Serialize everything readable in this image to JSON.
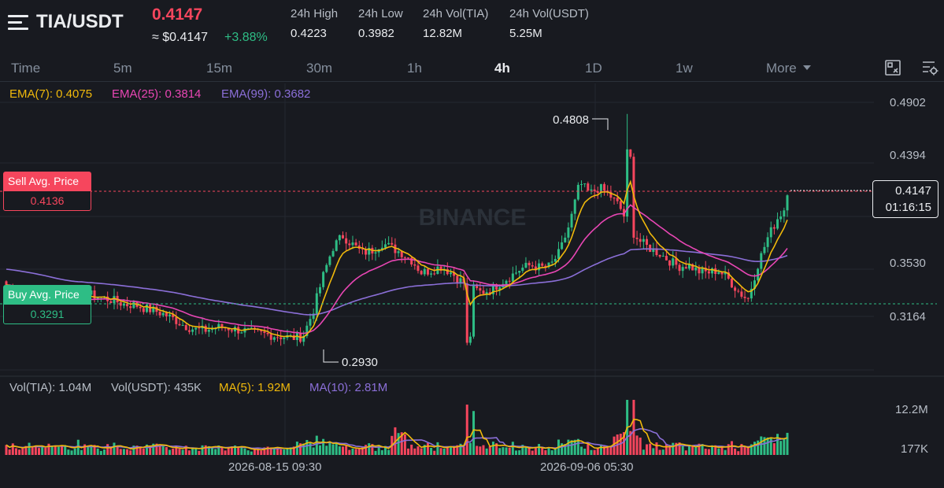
{
  "header": {
    "pair": "TIA/USDT",
    "last_price": "0.4147",
    "usd_price": "≈ $0.4147",
    "change": "+3.88%",
    "stats": [
      {
        "label": "24h High",
        "value": "0.4223"
      },
      {
        "label": "24h Low",
        "value": "0.3982"
      },
      {
        "label": "24h Vol(TIA)",
        "value": "12.82M"
      },
      {
        "label": "24h Vol(USDT)",
        "value": "5.25M"
      }
    ]
  },
  "timeframes": {
    "items": [
      "Time",
      "5m",
      "15m",
      "30m",
      "1h",
      "4h",
      "1D",
      "1w"
    ],
    "active": "4h",
    "more": "More"
  },
  "toolbar": {
    "icons": [
      "chart-settings-icon",
      "indicator-settings-icon"
    ]
  },
  "indicators": {
    "ema7": "EMA(7): 0.4075",
    "ema25": "EMA(25): 0.3814",
    "ema99": "EMA(99): 0.3682",
    "vol_tia": "Vol(TIA): 1.04M",
    "vol_usdt": "Vol(USDT): 435K",
    "ma5": "MA(5): 1.92M",
    "ma10": "MA(10): 2.81M"
  },
  "colors": {
    "up": "#2ebd85",
    "down": "#f6465d",
    "ema7": "#f0b90b",
    "ema25": "#e846b4",
    "ema99": "#8b6fd8",
    "background": "#181a20"
  },
  "price_axis": {
    "labels": [
      "0.4902",
      "0.4394",
      "0.3530",
      "0.3164"
    ]
  },
  "volume_axis": {
    "labels": [
      "12.2M",
      "177K"
    ]
  },
  "time_axis": {
    "labels": [
      "2026-08-15 09:30",
      "2026-09-06 05:30"
    ]
  },
  "orders": {
    "sell_label": "Sell Avg. Price",
    "sell_value": "0.4136",
    "buy_label": "Buy Avg. Price",
    "buy_value": "0.3291"
  },
  "current_price": {
    "price": "0.4147",
    "countdown": "01:16:15"
  },
  "annotations": {
    "high": "0.4808",
    "low": "0.2930"
  },
  "watermark": "BINANCE",
  "chart_data": {
    "type": "candlestick",
    "interval": "4h",
    "ylim": [
      0.285,
      0.49
    ],
    "key_points": {
      "high": 0.4808,
      "low": 0.293,
      "last": 0.4147,
      "sell_avg": 0.4136,
      "buy_avg": 0.3291
    },
    "close_path": [
      0.342,
      0.337,
      0.331,
      0.326,
      0.321,
      0.318,
      0.323,
      0.331,
      0.335,
      0.333,
      0.331,
      0.329,
      0.326,
      0.326,
      0.323,
      0.321,
      0.318,
      0.314,
      0.309,
      0.306,
      0.305,
      0.307,
      0.308,
      0.306,
      0.305,
      0.303,
      0.302,
      0.301,
      0.3,
      0.299,
      0.3,
      0.32,
      0.348,
      0.372,
      0.382,
      0.375,
      0.368,
      0.37,
      0.376,
      0.372,
      0.368,
      0.362,
      0.352,
      0.354,
      0.357,
      0.352,
      0.345,
      0.34,
      0.336,
      0.338,
      0.344,
      0.349,
      0.355,
      0.358,
      0.356,
      0.357,
      0.369,
      0.392,
      0.425,
      0.416,
      0.421,
      0.415,
      0.406,
      0.389,
      0.378,
      0.372,
      0.368,
      0.362,
      0.357,
      0.358,
      0.353,
      0.352,
      0.354,
      0.347,
      0.337,
      0.33,
      0.358,
      0.38,
      0.396,
      0.407
    ]
  }
}
